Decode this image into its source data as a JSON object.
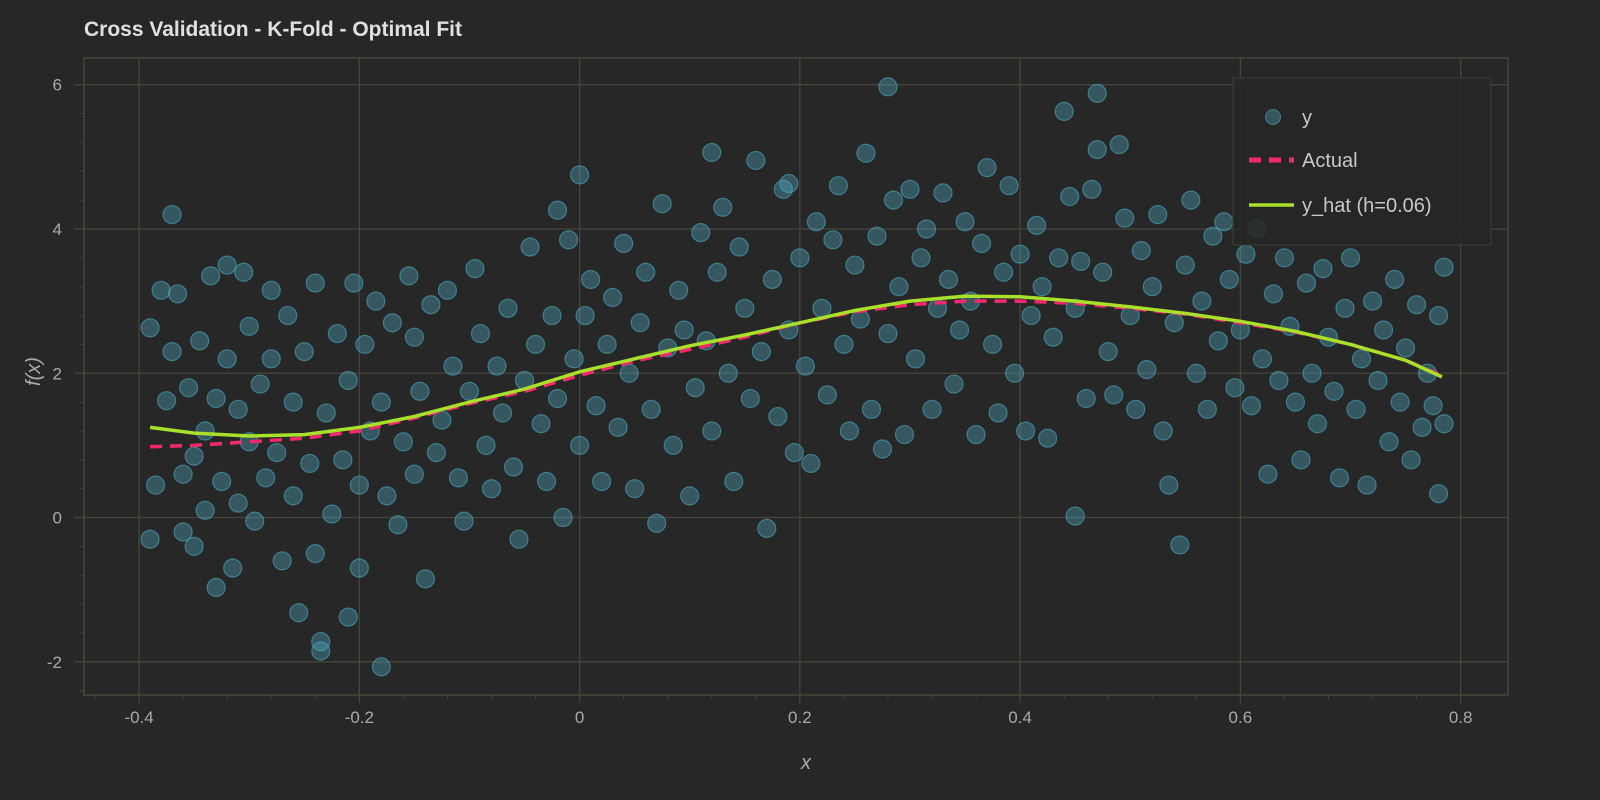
{
  "chart_data": {
    "type": "scatter",
    "title": "Cross Validation - K-Fold - Optimal Fit",
    "xlabel": "x",
    "ylabel": "f(x)",
    "xlim": [
      -0.45,
      0.843
    ],
    "ylim": [
      -2.46,
      6.37
    ],
    "xticks": [
      -0.4,
      -0.2,
      0,
      0.2,
      0.4,
      0.6,
      0.8
    ],
    "xtick_labels": [
      "-0.4",
      "-0.2",
      "0",
      "0.2",
      "0.4",
      "0.6",
      "0.8"
    ],
    "yticks": [
      -2,
      0,
      2,
      4,
      6
    ],
    "ytick_labels": [
      "-2",
      "0",
      "2",
      "4",
      "6"
    ],
    "grid": true,
    "legend_position": "top-right",
    "colors": {
      "background": "#272727",
      "grid": "#46463a",
      "scatter": "#4fb3cc",
      "actual": "#f5286e",
      "yhat": "#a8e02a"
    },
    "legend": [
      "y",
      "Actual",
      "y_hat (h=0.06)"
    ],
    "series": [
      {
        "name": "y",
        "type": "scatter",
        "points": [
          [
            -0.39,
            2.63
          ],
          [
            -0.39,
            -0.3
          ],
          [
            -0.385,
            0.45
          ],
          [
            -0.38,
            3.15
          ],
          [
            -0.375,
            1.62
          ],
          [
            -0.37,
            4.2
          ],
          [
            -0.37,
            2.3
          ],
          [
            -0.365,
            3.1
          ],
          [
            -0.36,
            0.6
          ],
          [
            -0.36,
            -0.2
          ],
          [
            -0.355,
            1.8
          ],
          [
            -0.35,
            0.85
          ],
          [
            -0.35,
            -0.4
          ],
          [
            -0.345,
            2.45
          ],
          [
            -0.34,
            1.2
          ],
          [
            -0.34,
            0.1
          ],
          [
            -0.335,
            3.35
          ],
          [
            -0.33,
            -0.97
          ],
          [
            -0.33,
            1.65
          ],
          [
            -0.325,
            0.5
          ],
          [
            -0.32,
            3.5
          ],
          [
            -0.32,
            2.2
          ],
          [
            -0.315,
            -0.7
          ],
          [
            -0.31,
            1.5
          ],
          [
            -0.31,
            0.2
          ],
          [
            -0.305,
            3.4
          ],
          [
            -0.3,
            1.05
          ],
          [
            -0.3,
            2.65
          ],
          [
            -0.295,
            -0.05
          ],
          [
            -0.29,
            1.85
          ],
          [
            -0.285,
            0.55
          ],
          [
            -0.28,
            3.15
          ],
          [
            -0.28,
            2.2
          ],
          [
            -0.275,
            0.9
          ],
          [
            -0.27,
            -0.6
          ],
          [
            -0.265,
            2.8
          ],
          [
            -0.26,
            1.6
          ],
          [
            -0.26,
            0.3
          ],
          [
            -0.255,
            -1.32
          ],
          [
            -0.25,
            2.3
          ],
          [
            -0.245,
            0.75
          ],
          [
            -0.24,
            3.25
          ],
          [
            -0.24,
            -0.5
          ],
          [
            -0.235,
            -1.85
          ],
          [
            -0.235,
            -1.72
          ],
          [
            -0.23,
            1.45
          ],
          [
            -0.225,
            0.05
          ],
          [
            -0.22,
            2.55
          ],
          [
            -0.215,
            0.8
          ],
          [
            -0.21,
            -1.38
          ],
          [
            -0.21,
            1.9
          ],
          [
            -0.205,
            3.25
          ],
          [
            -0.2,
            0.45
          ],
          [
            -0.2,
            -0.7
          ],
          [
            -0.195,
            2.4
          ],
          [
            -0.19,
            1.2
          ],
          [
            -0.185,
            3.0
          ],
          [
            -0.18,
            -2.07
          ],
          [
            -0.18,
            1.6
          ],
          [
            -0.175,
            0.3
          ],
          [
            -0.17,
            2.7
          ],
          [
            -0.165,
            -0.1
          ],
          [
            -0.16,
            1.05
          ],
          [
            -0.155,
            3.35
          ],
          [
            -0.15,
            0.6
          ],
          [
            -0.15,
            2.5
          ],
          [
            -0.145,
            1.75
          ],
          [
            -0.14,
            -0.85
          ],
          [
            -0.135,
            2.95
          ],
          [
            -0.13,
            0.9
          ],
          [
            -0.125,
            1.35
          ],
          [
            -0.12,
            3.15
          ],
          [
            -0.115,
            2.1
          ],
          [
            -0.11,
            0.55
          ],
          [
            -0.105,
            -0.05
          ],
          [
            -0.1,
            1.75
          ],
          [
            -0.095,
            3.45
          ],
          [
            -0.09,
            2.55
          ],
          [
            -0.085,
            1.0
          ],
          [
            -0.08,
            0.4
          ],
          [
            -0.075,
            2.1
          ],
          [
            -0.07,
            1.45
          ],
          [
            -0.065,
            2.9
          ],
          [
            -0.06,
            0.7
          ],
          [
            -0.055,
            -0.3
          ],
          [
            -0.05,
            1.9
          ],
          [
            -0.045,
            3.75
          ],
          [
            -0.04,
            2.4
          ],
          [
            -0.035,
            1.3
          ],
          [
            -0.03,
            0.5
          ],
          [
            -0.025,
            2.8
          ],
          [
            -0.02,
            4.26
          ],
          [
            -0.02,
            1.65
          ],
          [
            -0.015,
            0.0
          ],
          [
            -0.01,
            3.85
          ],
          [
            -0.005,
            2.2
          ],
          [
            0.0,
            4.75
          ],
          [
            0.0,
            1.0
          ],
          [
            0.005,
            2.8
          ],
          [
            0.01,
            3.3
          ],
          [
            0.015,
            1.55
          ],
          [
            0.02,
            0.5
          ],
          [
            0.025,
            2.4
          ],
          [
            0.03,
            3.05
          ],
          [
            0.035,
            1.25
          ],
          [
            0.04,
            3.8
          ],
          [
            0.045,
            2.0
          ],
          [
            0.05,
            0.4
          ],
          [
            0.055,
            2.7
          ],
          [
            0.06,
            3.4
          ],
          [
            0.065,
            1.5
          ],
          [
            0.07,
            -0.08
          ],
          [
            0.075,
            4.35
          ],
          [
            0.08,
            2.35
          ],
          [
            0.085,
            1.0
          ],
          [
            0.09,
            3.15
          ],
          [
            0.095,
            2.6
          ],
          [
            0.1,
            0.3
          ],
          [
            0.105,
            1.8
          ],
          [
            0.11,
            3.95
          ],
          [
            0.115,
            2.45
          ],
          [
            0.12,
            5.06
          ],
          [
            0.12,
            1.2
          ],
          [
            0.125,
            3.4
          ],
          [
            0.13,
            4.3
          ],
          [
            0.135,
            2.0
          ],
          [
            0.14,
            0.5
          ],
          [
            0.145,
            3.75
          ],
          [
            0.15,
            2.9
          ],
          [
            0.155,
            1.65
          ],
          [
            0.16,
            4.95
          ],
          [
            0.165,
            2.3
          ],
          [
            0.17,
            -0.15
          ],
          [
            0.175,
            3.3
          ],
          [
            0.18,
            1.4
          ],
          [
            0.185,
            4.55
          ],
          [
            0.19,
            2.6
          ],
          [
            0.19,
            4.63
          ],
          [
            0.195,
            0.9
          ],
          [
            0.2,
            3.6
          ],
          [
            0.205,
            2.1
          ],
          [
            0.21,
            0.75
          ],
          [
            0.215,
            4.1
          ],
          [
            0.22,
            2.9
          ],
          [
            0.225,
            1.7
          ],
          [
            0.23,
            3.85
          ],
          [
            0.235,
            4.6
          ],
          [
            0.24,
            2.4
          ],
          [
            0.245,
            1.2
          ],
          [
            0.25,
            3.5
          ],
          [
            0.255,
            2.75
          ],
          [
            0.26,
            5.05
          ],
          [
            0.265,
            1.5
          ],
          [
            0.27,
            3.9
          ],
          [
            0.275,
            0.95
          ],
          [
            0.28,
            5.97
          ],
          [
            0.28,
            2.55
          ],
          [
            0.285,
            4.4
          ],
          [
            0.29,
            3.2
          ],
          [
            0.295,
            1.15
          ],
          [
            0.3,
            4.55
          ],
          [
            0.305,
            2.2
          ],
          [
            0.31,
            3.6
          ],
          [
            0.315,
            4.0
          ],
          [
            0.32,
            1.5
          ],
          [
            0.325,
            2.9
          ],
          [
            0.33,
            4.5
          ],
          [
            0.335,
            3.3
          ],
          [
            0.34,
            1.85
          ],
          [
            0.345,
            2.6
          ],
          [
            0.35,
            4.1
          ],
          [
            0.355,
            3.0
          ],
          [
            0.36,
            1.15
          ],
          [
            0.365,
            3.8
          ],
          [
            0.37,
            4.85
          ],
          [
            0.375,
            2.4
          ],
          [
            0.38,
            1.45
          ],
          [
            0.385,
            3.4
          ],
          [
            0.39,
            4.6
          ],
          [
            0.395,
            2.0
          ],
          [
            0.4,
            3.65
          ],
          [
            0.405,
            1.2
          ],
          [
            0.41,
            2.8
          ],
          [
            0.415,
            4.05
          ],
          [
            0.42,
            3.2
          ],
          [
            0.425,
            1.1
          ],
          [
            0.43,
            2.5
          ],
          [
            0.435,
            3.6
          ],
          [
            0.44,
            5.63
          ],
          [
            0.445,
            4.45
          ],
          [
            0.45,
            0.02
          ],
          [
            0.45,
            2.9
          ],
          [
            0.455,
            3.55
          ],
          [
            0.46,
            1.65
          ],
          [
            0.465,
            4.55
          ],
          [
            0.47,
            5.88
          ],
          [
            0.47,
            5.1
          ],
          [
            0.475,
            3.4
          ],
          [
            0.48,
            2.3
          ],
          [
            0.485,
            1.7
          ],
          [
            0.49,
            5.17
          ],
          [
            0.495,
            4.15
          ],
          [
            0.5,
            2.8
          ],
          [
            0.505,
            1.5
          ],
          [
            0.51,
            3.7
          ],
          [
            0.515,
            2.05
          ],
          [
            0.52,
            3.2
          ],
          [
            0.525,
            4.2
          ],
          [
            0.53,
            1.2
          ],
          [
            0.535,
            0.45
          ],
          [
            0.54,
            2.7
          ],
          [
            0.545,
            -0.38
          ],
          [
            0.55,
            3.5
          ],
          [
            0.555,
            4.4
          ],
          [
            0.56,
            2.0
          ],
          [
            0.565,
            3.0
          ],
          [
            0.57,
            1.5
          ],
          [
            0.575,
            3.9
          ],
          [
            0.58,
            2.45
          ],
          [
            0.585,
            4.1
          ],
          [
            0.59,
            3.3
          ],
          [
            0.595,
            1.8
          ],
          [
            0.6,
            2.6
          ],
          [
            0.605,
            3.65
          ],
          [
            0.61,
            1.55
          ],
          [
            0.615,
            4.0
          ],
          [
            0.62,
            2.2
          ],
          [
            0.625,
            0.6
          ],
          [
            0.63,
            3.1
          ],
          [
            0.635,
            1.9
          ],
          [
            0.64,
            3.6
          ],
          [
            0.645,
            2.65
          ],
          [
            0.65,
            1.6
          ],
          [
            0.655,
            0.8
          ],
          [
            0.66,
            3.25
          ],
          [
            0.665,
            2.0
          ],
          [
            0.67,
            1.3
          ],
          [
            0.675,
            3.45
          ],
          [
            0.68,
            2.5
          ],
          [
            0.685,
            1.75
          ],
          [
            0.69,
            0.55
          ],
          [
            0.695,
            2.9
          ],
          [
            0.7,
            3.6
          ],
          [
            0.705,
            1.5
          ],
          [
            0.71,
            2.2
          ],
          [
            0.715,
            0.45
          ],
          [
            0.72,
            3.0
          ],
          [
            0.725,
            1.9
          ],
          [
            0.73,
            2.6
          ],
          [
            0.735,
            1.05
          ],
          [
            0.74,
            3.3
          ],
          [
            0.745,
            1.6
          ],
          [
            0.75,
            2.35
          ],
          [
            0.755,
            0.8
          ],
          [
            0.76,
            2.95
          ],
          [
            0.765,
            1.25
          ],
          [
            0.77,
            2.0
          ],
          [
            0.775,
            1.55
          ],
          [
            0.78,
            0.33
          ],
          [
            0.78,
            2.8
          ],
          [
            0.785,
            3.47
          ],
          [
            0.785,
            1.3
          ]
        ]
      },
      {
        "name": "Actual",
        "type": "line",
        "style": "dashed",
        "x": [
          -0.39,
          -0.35,
          -0.3,
          -0.25,
          -0.2,
          -0.15,
          -0.1,
          -0.05,
          0,
          0.05,
          0.1,
          0.15,
          0.2,
          0.25,
          0.3,
          0.35,
          0.4,
          0.45,
          0.5,
          0.55,
          0.6,
          0.65,
          0.7,
          0.75,
          0.783
        ],
        "y": [
          0.98,
          1.0,
          1.05,
          1.1,
          1.2,
          1.38,
          1.58,
          1.75,
          1.97,
          2.17,
          2.33,
          2.5,
          2.7,
          2.85,
          2.95,
          3.0,
          3.0,
          2.97,
          2.9,
          2.82,
          2.7,
          2.57,
          2.4,
          2.18,
          1.97
        ]
      },
      {
        "name": "y_hat (h=0.06)",
        "type": "line",
        "style": "solid",
        "x": [
          -0.39,
          -0.35,
          -0.3,
          -0.25,
          -0.2,
          -0.15,
          -0.1,
          -0.05,
          0,
          0.05,
          0.1,
          0.15,
          0.2,
          0.25,
          0.3,
          0.35,
          0.4,
          0.45,
          0.5,
          0.55,
          0.6,
          0.65,
          0.7,
          0.75,
          0.783
        ],
        "y": [
          1.25,
          1.17,
          1.13,
          1.15,
          1.25,
          1.4,
          1.6,
          1.78,
          2.02,
          2.2,
          2.38,
          2.53,
          2.7,
          2.87,
          3.0,
          3.07,
          3.06,
          3.0,
          2.92,
          2.83,
          2.72,
          2.58,
          2.4,
          2.18,
          1.95
        ]
      }
    ]
  }
}
